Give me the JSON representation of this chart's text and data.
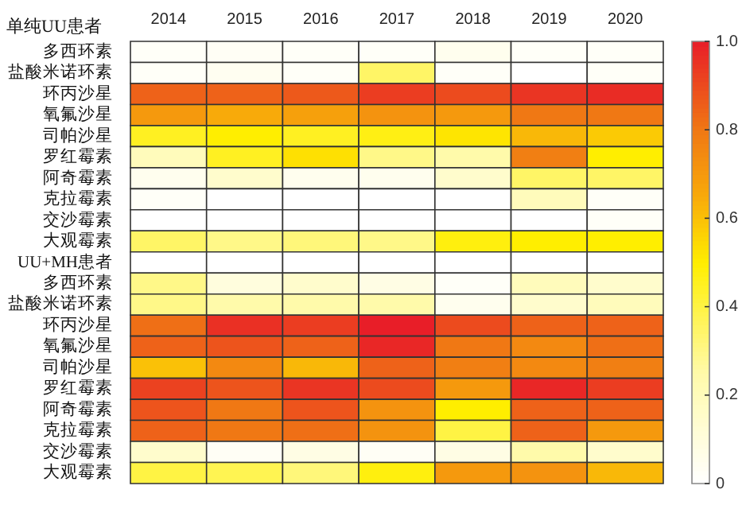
{
  "chart_data": {
    "type": "heatmap",
    "title": "单纯UU患者",
    "categories": [
      "2014",
      "2015",
      "2016",
      "2017",
      "2018",
      "2019",
      "2020"
    ],
    "y_categories": [
      "多西环素",
      "盐酸米诺环素",
      "环丙沙星",
      "氧氟沙星",
      "司帕沙星",
      "罗红霉素",
      "阿奇霉素",
      "克拉霉素",
      "交沙霉素",
      "大观霉素",
      "UU+MH患者",
      "多西环素",
      "盐酸米诺环素",
      "环丙沙星",
      "氧氟沙星",
      "司帕沙星",
      "罗红霉素",
      "阿奇霉素",
      "克拉霉素",
      "交沙霉素",
      "大观霉素"
    ],
    "cells": [
      [
        0.02,
        0.03,
        0.02,
        0.02,
        0.05,
        0.02,
        0.02
      ],
      [
        0.02,
        0.04,
        0.02,
        0.35,
        0.02,
        0,
        0.02
      ],
      [
        0.85,
        0.85,
        0.87,
        0.93,
        0.9,
        0.95,
        0.97
      ],
      [
        0.7,
        0.65,
        0.68,
        0.72,
        0.7,
        0.8,
        0.8
      ],
      [
        0.45,
        0.5,
        0.45,
        0.47,
        0.52,
        0.62,
        0.58
      ],
      [
        0.2,
        0.45,
        0.53,
        0.3,
        0.25,
        0.78,
        0.5
      ],
      [
        0.05,
        0.15,
        0.05,
        0.05,
        0.15,
        0.35,
        0.35
      ],
      [
        0.02,
        0,
        0,
        0,
        0,
        0.2,
        0.02
      ],
      [
        0,
        0,
        0,
        0,
        0,
        0,
        0.02
      ],
      [
        0.35,
        0.3,
        0.32,
        0.3,
        0.48,
        0.5,
        0.5
      ],
      [
        null,
        null,
        null,
        null,
        null,
        null,
        null
      ],
      [
        0.3,
        0.1,
        0.15,
        0.08,
        0.02,
        0.2,
        0.15
      ],
      [
        0.3,
        0.25,
        0.25,
        0.25,
        0.05,
        0.15,
        0.2
      ],
      [
        0.82,
        0.96,
        0.93,
        1.0,
        0.9,
        0.85,
        0.85
      ],
      [
        0.85,
        0.88,
        0.85,
        0.98,
        0.8,
        0.75,
        0.82
      ],
      [
        0.6,
        0.75,
        0.62,
        0.85,
        0.78,
        0.75,
        0.78
      ],
      [
        0.92,
        0.88,
        0.95,
        0.9,
        0.7,
        0.98,
        0.93
      ],
      [
        0.88,
        0.8,
        0.88,
        0.72,
        0.5,
        0.85,
        0.85
      ],
      [
        0.85,
        0.8,
        0.82,
        0.72,
        0.4,
        0.85,
        0.7
      ],
      [
        0.15,
        0.03,
        0.08,
        0.03,
        0.08,
        0.25,
        0.15
      ],
      [
        0.4,
        0.38,
        0.32,
        0.48,
        0.7,
        0.72,
        0.62
      ]
    ],
    "clim": [
      0,
      1
    ],
    "cticks": [
      0,
      0.2,
      0.4,
      0.6,
      0.8,
      {
        "value": 1,
        "label": "1.0"
      }
    ]
  }
}
